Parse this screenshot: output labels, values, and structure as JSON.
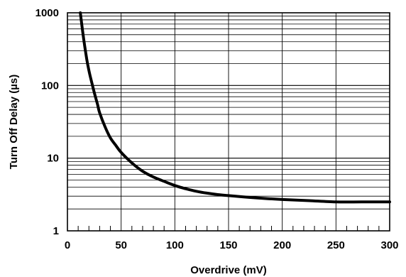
{
  "chart_data": {
    "type": "line",
    "xlabel": "Overdrive (mV)",
    "ylabel": "Turn Off Delay (µs)",
    "xlim": [
      0,
      300
    ],
    "ylim": [
      1,
      1000
    ],
    "yscale": "log",
    "grid": true,
    "x_ticks": [
      0,
      50,
      100,
      150,
      200,
      250,
      300
    ],
    "x_tick_labels": [
      "0",
      "50",
      "100",
      "150",
      "200",
      "250",
      "300"
    ],
    "y_ticks": [
      1,
      10,
      100,
      1000
    ],
    "y_tick_labels": [
      "1",
      "10",
      "100",
      "1000"
    ],
    "series": [
      {
        "x": [
          12,
          15,
          18,
          20,
          22,
          25,
          28,
          30,
          35,
          40,
          45,
          50,
          60,
          70,
          80,
          90,
          100,
          110,
          120,
          130,
          140,
          150,
          175,
          200,
          225,
          250,
          275,
          300
        ],
        "y": [
          1000,
          450,
          230,
          160,
          120,
          80,
          55,
          42,
          27,
          19,
          15,
          12,
          8.6,
          6.6,
          5.5,
          4.8,
          4.2,
          3.8,
          3.5,
          3.3,
          3.15,
          3.05,
          2.85,
          2.7,
          2.6,
          2.5,
          2.5,
          2.5
        ],
        "color": "#000000"
      }
    ]
  }
}
